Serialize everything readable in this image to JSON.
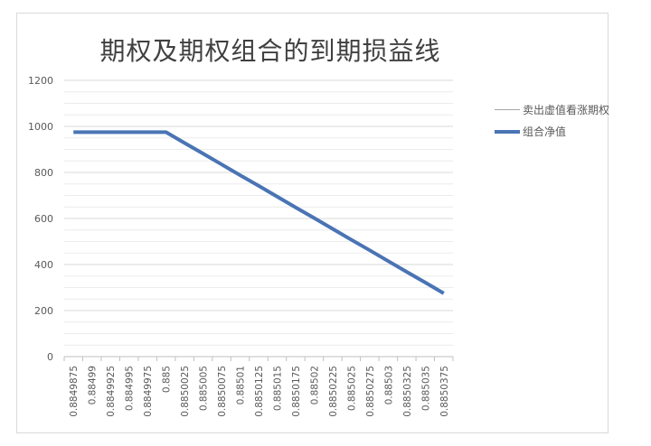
{
  "chart_data": {
    "type": "line",
    "title": "期权及期权组合的到期损益线",
    "xlabel": "",
    "ylabel": "",
    "ylim": [
      0,
      1200
    ],
    "yticks": [
      0,
      200,
      400,
      600,
      800,
      1000,
      1200
    ],
    "grid": true,
    "legend_position": "right",
    "x": [
      "0.8849875",
      "0.88499",
      "0.8849925",
      "0.884995",
      "0.8849975",
      "0.885",
      "0.8850025",
      "0.885005",
      "0.8850075",
      "0.88501",
      "0.8850125",
      "0.885015",
      "0.8850175",
      "0.88502",
      "0.8850225",
      "0.885025",
      "0.8850275",
      "0.88503",
      "0.8850325",
      "0.885035",
      "0.8850375"
    ],
    "series": [
      {
        "name": "卖出虚值看涨期权",
        "color": "#a5a5a5",
        "values": [
          null,
          null,
          null,
          null,
          null,
          null,
          null,
          null,
          null,
          null,
          null,
          null,
          null,
          null,
          null,
          null,
          null,
          null,
          null,
          null,
          null
        ]
      },
      {
        "name": "组合净值",
        "color": "#4a74b4",
        "values": [
          975,
          975,
          975,
          975,
          975,
          975,
          928,
          882,
          835,
          788,
          742,
          695,
          648,
          602,
          555,
          508,
          462,
          415,
          368,
          322,
          275
        ]
      }
    ]
  }
}
